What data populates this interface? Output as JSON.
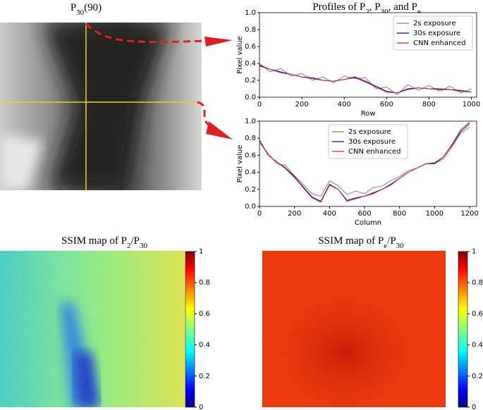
{
  "chart_data": [
    {
      "type": "image",
      "title": [
        {
          "text": "P"
        },
        {
          "text": "30",
          "sub": true
        },
        {
          "text": "(90)"
        }
      ]
    },
    {
      "type": "line",
      "title": [
        {
          "text": "Profiles of P"
        },
        {
          "text": "2",
          "sub": true
        },
        {
          "text": ", P"
        },
        {
          "text": "30",
          "sub": true
        },
        {
          "text": ", and P"
        },
        {
          "text": "e",
          "sub": true
        }
      ],
      "xlabel": "Row",
      "ylabel": "Pixel value",
      "x": [
        0,
        50,
        100,
        150,
        200,
        250,
        300,
        350,
        400,
        450,
        500,
        550,
        600,
        650,
        700,
        750,
        800,
        850,
        900,
        950,
        1000
      ],
      "series": [
        {
          "name": "2s exposure",
          "color": "#808080",
          "values": [
            0.4,
            0.3,
            0.34,
            0.25,
            0.28,
            0.2,
            0.24,
            0.17,
            0.25,
            0.22,
            0.23,
            0.1,
            0.12,
            0.03,
            0.15,
            0.08,
            0.14,
            0.07,
            0.13,
            0.05,
            0.1
          ]
        },
        {
          "name": "30s exposure",
          "color": "#0000cc",
          "values": [
            0.38,
            0.33,
            0.3,
            0.27,
            0.24,
            0.23,
            0.2,
            0.19,
            0.21,
            0.24,
            0.19,
            0.13,
            0.07,
            0.05,
            0.1,
            0.11,
            0.1,
            0.1,
            0.09,
            0.08,
            0.06
          ]
        },
        {
          "name": "CNN enhanced",
          "color": "#e02020",
          "values": [
            0.37,
            0.33,
            0.29,
            0.27,
            0.24,
            0.22,
            0.2,
            0.19,
            0.21,
            0.23,
            0.18,
            0.12,
            0.06,
            0.05,
            0.09,
            0.11,
            0.1,
            0.09,
            0.09,
            0.07,
            0.06
          ]
        }
      ],
      "xlim": [
        0,
        1025
      ],
      "xticks": [
        0,
        200,
        400,
        600,
        800,
        1000
      ],
      "ylim": [
        0,
        1
      ],
      "yticks": [
        {
          "value": 0,
          "label": "0.0"
        },
        0.2,
        0.4,
        0.6,
        0.8,
        {
          "value": 1,
          "label": "1.0"
        }
      ],
      "legend": "upper right"
    },
    {
      "type": "line",
      "xlabel": "Column",
      "ylabel": "Pixel value",
      "x": [
        0,
        50,
        100,
        150,
        200,
        250,
        300,
        350,
        400,
        450,
        500,
        550,
        600,
        650,
        700,
        750,
        800,
        850,
        900,
        950,
        1000,
        1050,
        1100,
        1150,
        1200
      ],
      "series": [
        {
          "name": "2s exposure",
          "color": "#808080",
          "values": [
            0.75,
            0.62,
            0.5,
            0.48,
            0.36,
            0.26,
            0.15,
            0.12,
            0.3,
            0.24,
            0.14,
            0.18,
            0.15,
            0.22,
            0.24,
            0.3,
            0.35,
            0.42,
            0.45,
            0.5,
            0.5,
            0.56,
            0.7,
            0.86,
            0.93
          ]
        },
        {
          "name": "30s exposure",
          "color": "#0000cc",
          "values": [
            0.78,
            0.6,
            0.52,
            0.45,
            0.35,
            0.23,
            0.11,
            0.06,
            0.26,
            0.2,
            0.07,
            0.1,
            0.12,
            0.16,
            0.2,
            0.26,
            0.33,
            0.4,
            0.45,
            0.5,
            0.51,
            0.58,
            0.72,
            0.88,
            0.97
          ]
        },
        {
          "name": "CNN enhanced",
          "color": "#e02020",
          "values": [
            0.77,
            0.6,
            0.52,
            0.44,
            0.34,
            0.22,
            0.1,
            0.05,
            0.25,
            0.2,
            0.06,
            0.09,
            0.12,
            0.15,
            0.2,
            0.25,
            0.33,
            0.4,
            0.45,
            0.5,
            0.5,
            0.58,
            0.73,
            0.9,
            0.99
          ]
        }
      ],
      "xlim": [
        0,
        1240
      ],
      "xticks": [
        0,
        200,
        400,
        600,
        800,
        1000,
        1200
      ],
      "ylim": [
        0,
        1
      ],
      "yticks": [
        {
          "value": 0,
          "label": "0.0"
        },
        0.2,
        0.4,
        0.6,
        0.8,
        {
          "value": 1,
          "label": "1.0"
        }
      ],
      "legend": "upper center"
    },
    {
      "type": "heatmap",
      "title": [
        {
          "text": "SSIM map of P"
        },
        {
          "text": "2",
          "sub": true
        },
        {
          "text": "/P"
        },
        {
          "text": "30",
          "sub": true
        }
      ],
      "colormap": "jet",
      "clim": [
        0,
        1
      ],
      "cticks": [
        0,
        0.2,
        0.4,
        0.6,
        0.8,
        1
      ]
    },
    {
      "type": "heatmap",
      "title": [
        {
          "text": "SSIM map of P"
        },
        {
          "text": "e",
          "sub": true
        },
        {
          "text": "/P"
        },
        {
          "text": "30",
          "sub": true
        }
      ],
      "colormap": "jet",
      "clim": [
        0,
        1
      ],
      "cticks": [
        0,
        0.2,
        0.4,
        0.6,
        0.8,
        1
      ]
    }
  ]
}
